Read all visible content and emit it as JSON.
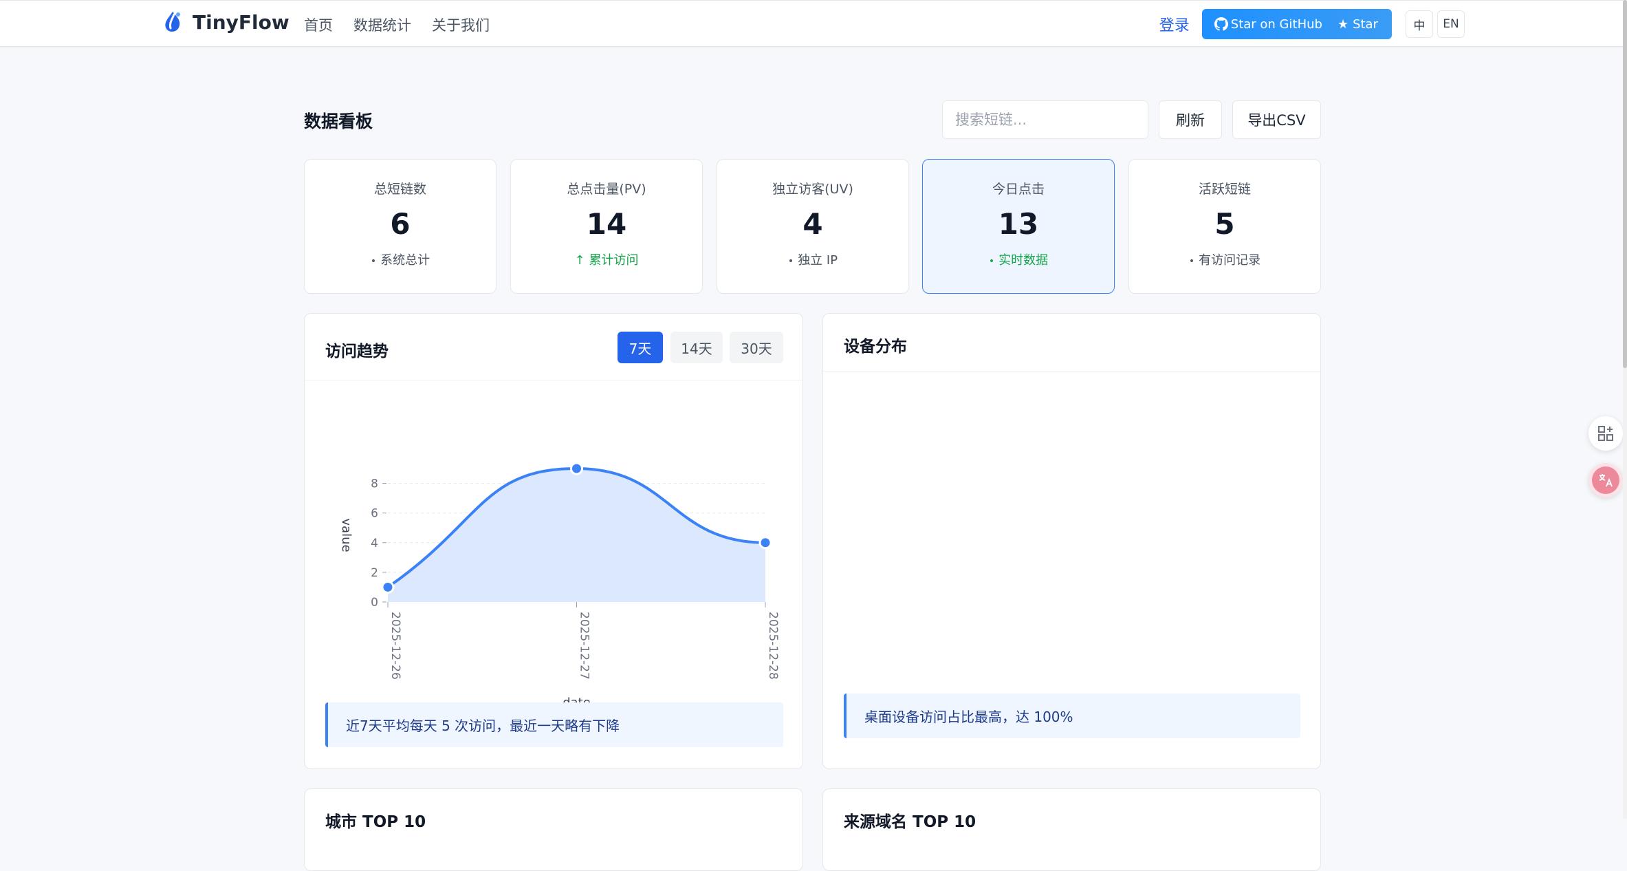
{
  "nav": {
    "brand": "TinyFlow",
    "items": [
      "首页",
      "数据统计",
      "关于我们"
    ],
    "login": "登录",
    "github_label": "Star on GitHub",
    "star_label": "Star",
    "lang_zh": "中",
    "lang_en": "EN"
  },
  "header": {
    "title": "数据看板",
    "search_placeholder": "搜索短链...",
    "refresh": "刷新",
    "export": "导出CSV"
  },
  "stats": [
    {
      "label": "总短链数",
      "value": "6",
      "sub": "系统总计",
      "sub_prefix": "•"
    },
    {
      "label": "总点击量(PV)",
      "value": "14",
      "sub": "累计访问",
      "sub_prefix": "↑"
    },
    {
      "label": "独立访客(UV)",
      "value": "4",
      "sub": "独立 IP",
      "sub_prefix": "•"
    },
    {
      "label": "今日点击",
      "value": "13",
      "sub": "实时数据",
      "sub_prefix": "•"
    },
    {
      "label": "活跃短链",
      "value": "5",
      "sub": "有访问记录",
      "sub_prefix": "•"
    }
  ],
  "trend": {
    "title": "访问趋势",
    "ranges": [
      "7天",
      "14天",
      "30天"
    ],
    "active_range": "7天",
    "insight": "近7天平均每天 5 次访问，最近一天略有下降"
  },
  "device": {
    "title": "设备分布",
    "insight": "桌面设备访问占比最高，达 100%"
  },
  "bottom": {
    "city_title": "城市 TOP 10",
    "referer_title": "来源域名 TOP 10"
  },
  "colors": {
    "accent": "#2563eb",
    "line": "#3b82f6",
    "area": "#dbe8fd",
    "green": "#16a34a"
  },
  "chart_data": {
    "type": "area",
    "x": [
      "2025-12-26",
      "2025-12-27",
      "2025-12-28"
    ],
    "series": [
      {
        "values": [
          1,
          9,
          4
        ]
      }
    ],
    "xlabel": "date",
    "ylabel": "value",
    "yticks": [
      0,
      2,
      4,
      6,
      8
    ],
    "ylim": [
      0,
      9
    ],
    "smooth": true
  }
}
